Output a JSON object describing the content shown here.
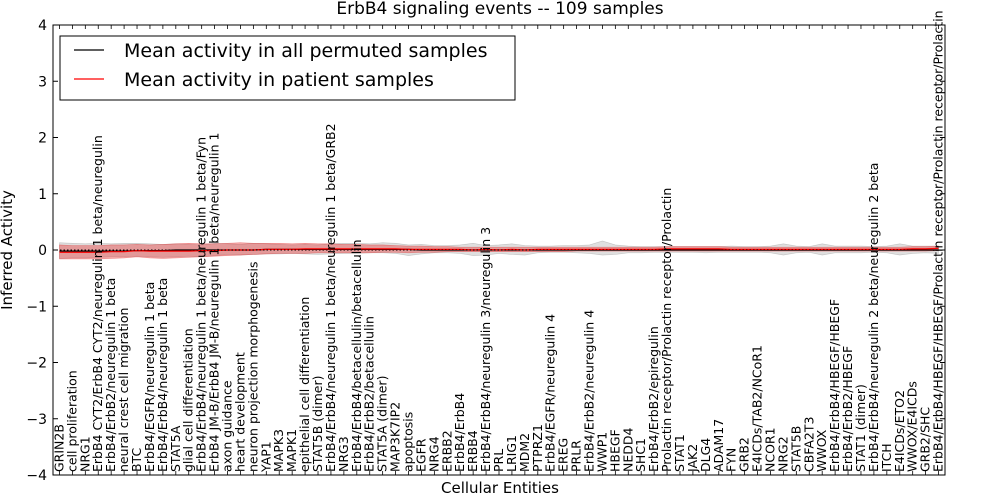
{
  "chart_data": {
    "type": "line",
    "title": "ErbB4 signaling events -- 109 samples",
    "xlabel": "Cellular Entities",
    "ylabel": "Inferred Activity",
    "ylim": [
      -4,
      4
    ],
    "yticks": [
      -4,
      -3,
      -2,
      -1,
      0,
      1,
      2,
      3,
      4
    ],
    "ytick_labels": [
      "−4",
      "−3",
      "−2",
      "−1",
      "0",
      "1",
      "2",
      "3",
      "4"
    ],
    "legend": {
      "location": "top-left",
      "entries": [
        {
          "label": "Mean activity in all permuted samples",
          "color": "#000000"
        },
        {
          "label": "Mean activity in patient samples",
          "color": "#ff0000"
        }
      ]
    },
    "categories": [
      "GRIN2B",
      "cell proliferation",
      "NRG1",
      "ErbB4 CYT2/ErbB4 CYT2/neuregulin 1 beta/neuregulin",
      "ErbB4/ErbB2/neuregulin 1 beta",
      "neural crest cell migration",
      "BTC",
      "ErbB4/EGFR/neuregulin 1 beta",
      "ErbB4/ErbB4/neuregulin 1 beta",
      "STAT5A",
      "glial cell differentiation",
      "ErbB4/ErbB4/neuregulin 1 beta/neuregulin 1 beta/Fyn",
      "ErbB4 JM-B/ErbB4 JM-B/neuregulin 1 beta/neuregulin 1",
      "axon guidance",
      "heart development",
      "neuron projection morphogenesis",
      "YAP1",
      "MAPK3",
      "MAPK1",
      "epithelial cell differentiation",
      "STAT5B (dimer)",
      "ErbB4/ErbB4/neuregulin 1 beta/neuregulin 1 beta/GRB2",
      "NRG3",
      "ErbB4/ErbB4/betacellulin/betacellulin",
      "ErbB4/ErbB2/betacellulin",
      "STAT5A (dimer)",
      "MAP3K7IP2",
      "apoptosis",
      "EGFR",
      "NRG4",
      "ERBB2",
      "ErbB4/ErbB4",
      "ERBB4",
      "ErbB4/ErbB4/neuregulin 3/neuregulin 3",
      "PRL",
      "LRIG1",
      "MDM2",
      "PTPRZ1",
      "ErbB4/EGFR/neuregulin 4",
      "EREG",
      "PRLR",
      "ErbB4/ErbB2/neuregulin 4",
      "WWP1",
      "HBEGF",
      "NEDD4",
      "SHC1",
      "ErbB4/ErbB2/epiregulin",
      "Prolactin receptor/Prolactin receptor/Prolactin",
      "STAT1",
      "JAK2",
      "DLG4",
      "ADAM17",
      "FYN",
      "GRB2",
      "E4ICDs/TAB2/NCoR1",
      "NCOR1",
      "NRG2",
      "STAT5B",
      "CBFA2T3",
      "WWOX",
      "ErbB4/ErbB4/HBEGF/HBEGF",
      "ErbB4/ErbB2/HBEGF",
      "STAT1 (dimer)",
      "ErbB4/ErbB4/neuregulin 2 beta/neuregulin 2 beta",
      "ITCH",
      "E4ICDs/ETO2",
      "WWOX/E4ICDs",
      "GRB2/SHC",
      "ErbB4/ErbB4/HBEGF/HBEGF/Prolactin receptor/Prolactin receptor/Prolactin"
    ],
    "series": [
      {
        "name": "Mean activity in all permuted samples",
        "color": "#000000",
        "values": [
          -0.02,
          -0.02,
          -0.02,
          -0.02,
          -0.02,
          -0.02,
          -0.01,
          -0.01,
          -0.01,
          0.0,
          0.0,
          0.0,
          0.0,
          0.0,
          0.0,
          0.0,
          0.01,
          0.01,
          0.01,
          0.01,
          0.01,
          0.01,
          0.01,
          0.01,
          0.01,
          0.01,
          0.01,
          0.01,
          0.0,
          0.0,
          0.0,
          0.0,
          0.0,
          0.0,
          0.0,
          0.0,
          0.0,
          0.0,
          0.0,
          0.0,
          0.0,
          0.0,
          0.0,
          0.0,
          0.0,
          0.0,
          0.0,
          0.0,
          0.0,
          0.0,
          0.0,
          0.0,
          0.0,
          0.0,
          0.0,
          0.0,
          0.0,
          0.0,
          0.0,
          0.0,
          0.0,
          0.0,
          0.0,
          0.0,
          0.0,
          0.0,
          0.0,
          0.0,
          0.0
        ],
        "band_low": [
          -0.15,
          -0.14,
          -0.14,
          -0.13,
          -0.12,
          -0.12,
          -0.11,
          -0.12,
          -0.13,
          -0.12,
          -0.11,
          -0.12,
          -0.1,
          -0.08,
          -0.09,
          -0.08,
          -0.07,
          -0.07,
          -0.06,
          -0.07,
          -0.08,
          -0.07,
          -0.06,
          -0.06,
          -0.05,
          -0.05,
          -0.06,
          -0.1,
          -0.07,
          -0.05,
          -0.05,
          -0.06,
          -0.1,
          -0.09,
          -0.06,
          -0.08,
          -0.09,
          -0.05,
          -0.04,
          -0.04,
          -0.05,
          -0.06,
          -0.09,
          -0.08,
          -0.05,
          -0.05,
          -0.04,
          -0.04,
          -0.04,
          -0.04,
          -0.05,
          -0.04,
          -0.04,
          -0.04,
          -0.04,
          -0.05,
          -0.09,
          -0.05,
          -0.04,
          -0.09,
          -0.05,
          -0.05,
          -0.05,
          -0.04,
          -0.05,
          -0.09,
          -0.06,
          -0.05,
          -0.06
        ],
        "band_high": [
          0.13,
          0.12,
          0.11,
          0.12,
          0.11,
          0.12,
          0.12,
          0.11,
          0.1,
          0.11,
          0.1,
          0.09,
          0.12,
          0.11,
          0.1,
          0.12,
          0.11,
          0.1,
          0.09,
          0.1,
          0.09,
          0.11,
          0.12,
          0.12,
          0.11,
          0.13,
          0.12,
          0.09,
          0.1,
          0.08,
          0.08,
          0.09,
          0.12,
          0.08,
          0.09,
          0.11,
          0.08,
          0.07,
          0.07,
          0.08,
          0.08,
          0.09,
          0.16,
          0.09,
          0.07,
          0.06,
          0.06,
          0.06,
          0.06,
          0.06,
          0.06,
          0.06,
          0.07,
          0.06,
          0.06,
          0.07,
          0.11,
          0.07,
          0.06,
          0.11,
          0.07,
          0.07,
          0.07,
          0.06,
          0.07,
          0.11,
          0.07,
          0.07,
          0.07
        ]
      },
      {
        "name": "Mean activity in patient samples",
        "color": "#ff0000",
        "values": [
          -0.04,
          -0.04,
          -0.04,
          -0.04,
          -0.03,
          -0.03,
          -0.01,
          -0.02,
          -0.02,
          -0.02,
          -0.02,
          -0.01,
          -0.01,
          0.0,
          0.0,
          0.0,
          0.01,
          0.01,
          0.01,
          0.02,
          0.02,
          0.02,
          0.02,
          0.02,
          0.02,
          0.02,
          0.02,
          0.01,
          0.01,
          0.01,
          0.01,
          0.01,
          0.0,
          0.01,
          0.0,
          0.01,
          0.0,
          0.01,
          0.01,
          0.01,
          0.01,
          0.01,
          0.01,
          0.01,
          0.01,
          0.01,
          0.01,
          0.02,
          0.02,
          0.02,
          0.02,
          0.02,
          0.01,
          0.01,
          0.01,
          0.01,
          0.01,
          0.01,
          0.01,
          0.01,
          0.01,
          0.01,
          0.01,
          0.01,
          0.01,
          0.01,
          0.02,
          0.02,
          0.03
        ],
        "band_low": [
          -0.16,
          -0.16,
          -0.16,
          -0.16,
          -0.15,
          -0.14,
          -0.12,
          -0.14,
          -0.15,
          -0.14,
          -0.13,
          -0.12,
          -0.11,
          -0.1,
          -0.09,
          -0.08,
          -0.07,
          -0.06,
          -0.06,
          -0.06,
          -0.05,
          -0.05,
          -0.05,
          -0.05,
          -0.05,
          -0.04,
          -0.04,
          -0.05,
          -0.04,
          -0.04,
          -0.03,
          -0.03,
          -0.03,
          -0.03,
          -0.03,
          -0.03,
          -0.03,
          -0.03,
          -0.03,
          -0.03,
          -0.02,
          -0.02,
          -0.02,
          -0.02,
          -0.02,
          -0.02,
          -0.02,
          -0.02,
          -0.02,
          -0.02,
          -0.02,
          -0.02,
          -0.02,
          -0.02,
          -0.02,
          -0.02,
          -0.02,
          -0.02,
          -0.02,
          -0.02,
          -0.02,
          -0.02,
          -0.02,
          -0.02,
          -0.02,
          -0.02,
          -0.02,
          -0.02,
          -0.01
        ],
        "band_high": [
          0.09,
          0.08,
          0.08,
          0.08,
          0.09,
          0.09,
          0.1,
          0.09,
          0.1,
          0.11,
          0.12,
          0.11,
          0.11,
          0.12,
          0.13,
          0.12,
          0.12,
          0.12,
          0.11,
          0.12,
          0.11,
          0.11,
          0.1,
          0.1,
          0.09,
          0.09,
          0.08,
          0.07,
          0.07,
          0.06,
          0.06,
          0.05,
          0.05,
          0.05,
          0.05,
          0.05,
          0.05,
          0.05,
          0.05,
          0.05,
          0.05,
          0.05,
          0.05,
          0.05,
          0.05,
          0.05,
          0.05,
          0.06,
          0.06,
          0.06,
          0.06,
          0.06,
          0.05,
          0.05,
          0.05,
          0.05,
          0.05,
          0.05,
          0.05,
          0.05,
          0.05,
          0.05,
          0.05,
          0.05,
          0.05,
          0.05,
          0.06,
          0.06,
          0.07
        ]
      }
    ]
  }
}
